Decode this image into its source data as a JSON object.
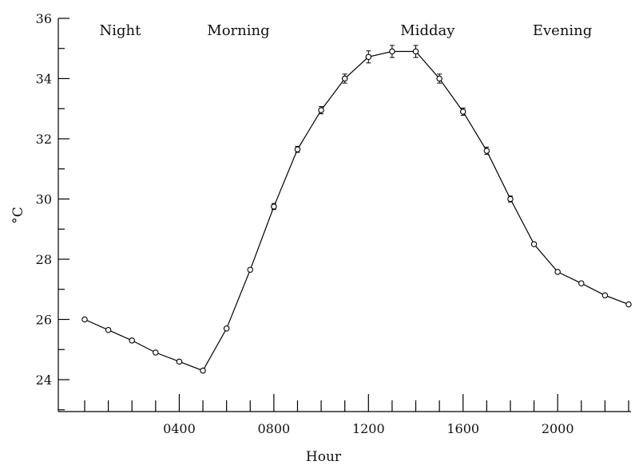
{
  "chart_data": {
    "type": "line",
    "xlabel": "Hour",
    "ylabel": "°C",
    "ylim": [
      23.2,
      36
    ],
    "xlim": [
      -200,
      2400
    ],
    "y_ticks": [
      24,
      26,
      28,
      30,
      32,
      34,
      36
    ],
    "y_tick_labels": [
      "24",
      "26",
      "28",
      "30",
      "32",
      "34",
      "36"
    ],
    "x_major_ticks": [
      400,
      800,
      1200,
      1600,
      2000
    ],
    "x_tick_labels": [
      "0400",
      "0800",
      "1200",
      "1600",
      "2000"
    ],
    "x_minor_ticks": [
      0,
      100,
      200,
      300,
      400,
      500,
      600,
      700,
      800,
      900,
      1000,
      1100,
      1200,
      1300,
      1400,
      1500,
      1600,
      1700,
      1800,
      1900,
      2000,
      2100,
      2200,
      2300
    ],
    "period_labels": [
      {
        "text": "Night",
        "x": 150
      },
      {
        "text": "Morning",
        "x": 650
      },
      {
        "text": "Midday",
        "x": 1450
      },
      {
        "text": "Evening",
        "x": 2020
      }
    ],
    "grid": false,
    "series": [
      {
        "x": [
          0,
          100,
          200,
          300,
          400,
          500,
          600,
          700,
          800,
          900,
          1000,
          1100,
          1200,
          1300,
          1400,
          1500,
          1600,
          1700,
          1800,
          1900,
          2000,
          2100,
          2200,
          2300
        ],
        "y": [
          26.0,
          25.65,
          25.3,
          24.9,
          24.6,
          24.3,
          25.7,
          27.65,
          29.75,
          31.65,
          32.95,
          34.0,
          34.72,
          34.9,
          34.9,
          34.0,
          32.9,
          31.6,
          30.0,
          28.5,
          27.58,
          27.2,
          26.8,
          26.5
        ],
        "error": [
          0.06,
          0.06,
          0.06,
          0.06,
          0.06,
          0.06,
          0.06,
          0.06,
          0.1,
          0.1,
          0.12,
          0.15,
          0.2,
          0.2,
          0.2,
          0.15,
          0.12,
          0.12,
          0.1,
          0.06,
          0.05,
          0.05,
          0.05,
          0.05
        ],
        "marker": "circle",
        "color": "#000000"
      }
    ]
  }
}
